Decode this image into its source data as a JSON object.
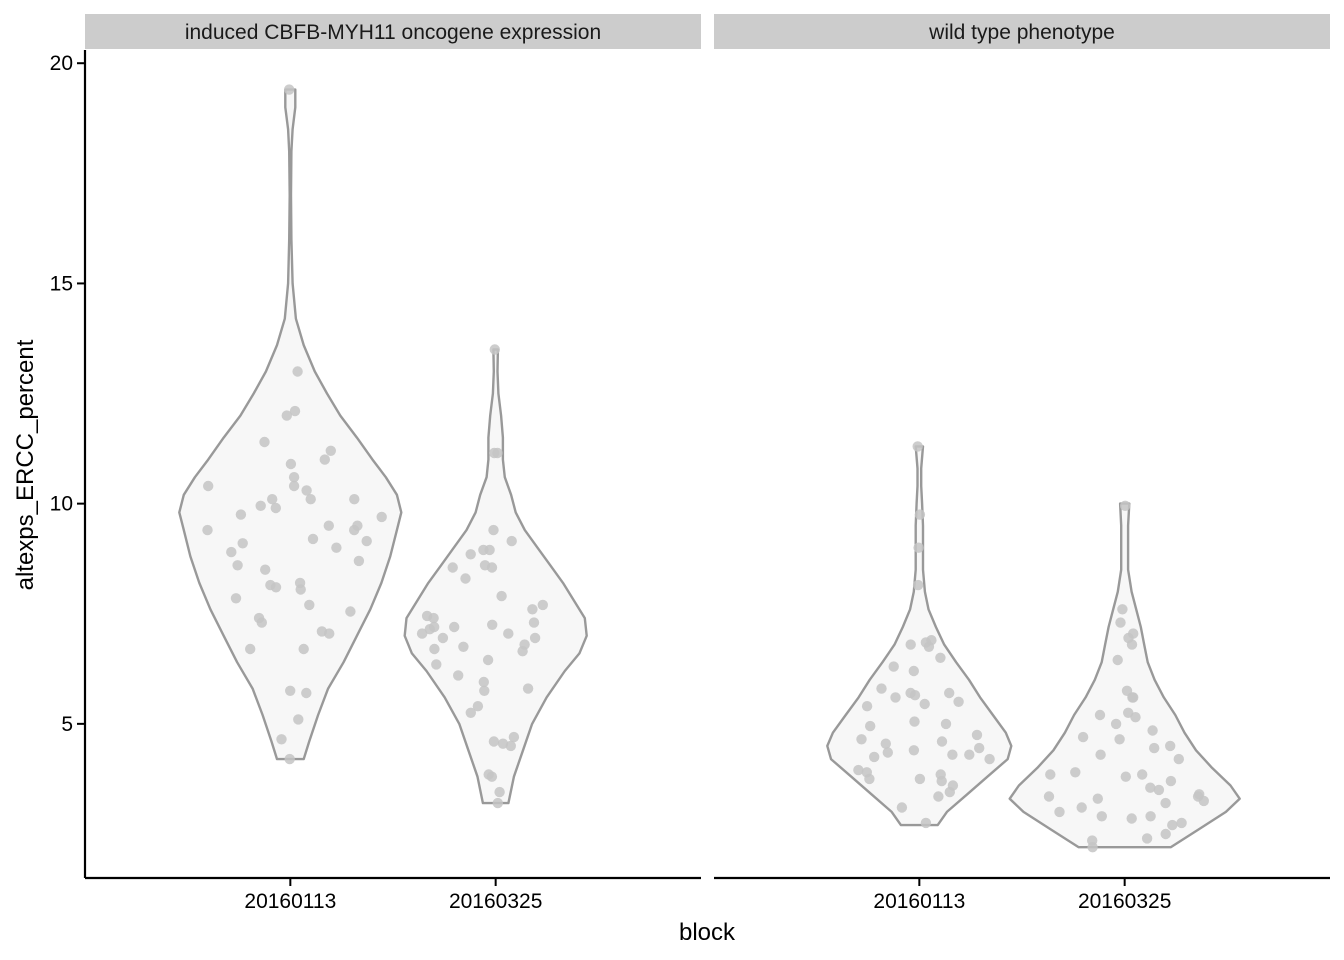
{
  "chart_data": {
    "type": "violin",
    "xlabel": "block",
    "ylabel": "altexps_ERCC_percent",
    "ylim": [
      1.5,
      20.3
    ],
    "yticks": [
      5,
      10,
      15,
      20
    ],
    "grid": false,
    "legend": "none",
    "colors": {
      "violin_fill": "#f7f7f7",
      "violin_stroke": "#999999",
      "points": "#c4c4c4",
      "strip": "#cccccc"
    },
    "panels": [
      {
        "title": "induced CBFB-MYH11 oncogene expression",
        "groups": [
          {
            "category": "20160113",
            "min": 4.2,
            "max": 19.4,
            "profile": [
              [
                4.2,
                0.12
              ],
              [
                4.6,
                0.17
              ],
              [
                5.2,
                0.25
              ],
              [
                5.8,
                0.34
              ],
              [
                6.4,
                0.48
              ],
              [
                7.0,
                0.6
              ],
              [
                7.6,
                0.72
              ],
              [
                8.2,
                0.82
              ],
              [
                8.8,
                0.9
              ],
              [
                9.4,
                0.96
              ],
              [
                9.8,
                1.0
              ],
              [
                10.2,
                0.96
              ],
              [
                10.6,
                0.86
              ],
              [
                11.0,
                0.74
              ],
              [
                11.5,
                0.6
              ],
              [
                12.0,
                0.45
              ],
              [
                12.5,
                0.33
              ],
              [
                13.0,
                0.22
              ],
              [
                13.6,
                0.12
              ],
              [
                14.2,
                0.05
              ],
              [
                15.0,
                0.02
              ],
              [
                16.0,
                0.01
              ],
              [
                17.0,
                0.006
              ],
              [
                18.0,
                0.01
              ],
              [
                18.5,
                0.02
              ],
              [
                19.0,
                0.045
              ],
              [
                19.4,
                0.045
              ]
            ],
            "points": [
              19.4,
              13.0,
              12.1,
              12.0,
              11.4,
              11.2,
              11.0,
              10.9,
              10.6,
              10.4,
              10.4,
              10.3,
              10.1,
              10.1,
              10.1,
              9.95,
              9.9,
              9.75,
              9.7,
              9.5,
              9.5,
              9.4,
              9.4,
              9.2,
              9.15,
              9.1,
              9.0,
              8.9,
              8.7,
              8.6,
              8.5,
              8.2,
              8.15,
              8.1,
              8.05,
              7.85,
              7.7,
              7.55,
              7.4,
              7.3,
              7.1,
              7.05,
              6.7,
              6.7,
              5.75,
              5.7,
              5.1,
              4.65,
              4.2
            ]
          },
          {
            "category": "20160325",
            "min": 3.2,
            "max": 13.5,
            "profile": [
              [
                3.2,
                0.14
              ],
              [
                3.8,
                0.2
              ],
              [
                4.4,
                0.3
              ],
              [
                5.0,
                0.4
              ],
              [
                5.6,
                0.56
              ],
              [
                6.2,
                0.76
              ],
              [
                6.6,
                0.92
              ],
              [
                7.0,
                1.0
              ],
              [
                7.4,
                0.98
              ],
              [
                7.8,
                0.86
              ],
              [
                8.2,
                0.74
              ],
              [
                8.6,
                0.6
              ],
              [
                9.0,
                0.46
              ],
              [
                9.4,
                0.32
              ],
              [
                9.8,
                0.22
              ],
              [
                10.2,
                0.17
              ],
              [
                10.6,
                0.1
              ],
              [
                11.0,
                0.08
              ],
              [
                11.5,
                0.08
              ],
              [
                12.0,
                0.06
              ],
              [
                12.5,
                0.03
              ],
              [
                13.0,
                0.02
              ],
              [
                13.5,
                0.025
              ]
            ],
            "points": [
              13.5,
              11.15,
              11.15,
              9.4,
              9.15,
              8.95,
              8.95,
              8.85,
              8.6,
              8.55,
              8.55,
              8.3,
              7.9,
              7.7,
              7.6,
              7.45,
              7.4,
              7.3,
              7.25,
              7.2,
              7.2,
              7.15,
              7.05,
              7.05,
              6.95,
              6.95,
              6.8,
              6.75,
              6.7,
              6.65,
              6.45,
              6.35,
              6.1,
              5.95,
              5.8,
              5.75,
              5.4,
              5.25,
              4.7,
              4.6,
              4.55,
              4.5,
              3.85,
              3.8,
              3.45,
              3.2
            ]
          }
        ]
      },
      {
        "title": "wild type phenotype",
        "groups": [
          {
            "category": "20160113",
            "min": 2.7,
            "max": 11.3,
            "profile": [
              [
                2.7,
                0.2
              ],
              [
                3.0,
                0.3
              ],
              [
                3.4,
                0.52
              ],
              [
                3.8,
                0.74
              ],
              [
                4.2,
                0.96
              ],
              [
                4.5,
                1.0
              ],
              [
                4.8,
                0.94
              ],
              [
                5.2,
                0.8
              ],
              [
                5.6,
                0.66
              ],
              [
                6.0,
                0.54
              ],
              [
                6.4,
                0.4
              ],
              [
                6.8,
                0.27
              ],
              [
                7.2,
                0.18
              ],
              [
                7.6,
                0.1
              ],
              [
                8.0,
                0.06
              ],
              [
                8.5,
                0.04
              ],
              [
                9.0,
                0.04
              ],
              [
                9.5,
                0.04
              ],
              [
                10.0,
                0.03
              ],
              [
                10.4,
                0.02
              ],
              [
                10.8,
                0.02
              ],
              [
                11.3,
                0.04
              ]
            ],
            "points": [
              11.3,
              9.75,
              9.0,
              8.15,
              6.9,
              6.85,
              6.8,
              6.75,
              6.5,
              6.3,
              6.2,
              5.8,
              5.7,
              5.7,
              5.65,
              5.6,
              5.5,
              5.45,
              5.4,
              5.05,
              5.0,
              4.95,
              4.75,
              4.65,
              4.6,
              4.55,
              4.45,
              4.4,
              4.35,
              4.3,
              4.3,
              4.25,
              4.2,
              3.95,
              3.9,
              3.85,
              3.75,
              3.75,
              3.7,
              3.6,
              3.45,
              3.35,
              3.1,
              2.75
            ]
          },
          {
            "category": "20160325",
            "min": 2.2,
            "max": 10.0,
            "profile": [
              [
                2.2,
                0.4
              ],
              [
                2.6,
                0.64
              ],
              [
                3.0,
                0.88
              ],
              [
                3.3,
                1.0
              ],
              [
                3.6,
                0.92
              ],
              [
                4.0,
                0.76
              ],
              [
                4.4,
                0.62
              ],
              [
                4.8,
                0.52
              ],
              [
                5.2,
                0.44
              ],
              [
                5.6,
                0.34
              ],
              [
                6.0,
                0.26
              ],
              [
                6.4,
                0.2
              ],
              [
                6.8,
                0.17
              ],
              [
                7.2,
                0.14
              ],
              [
                7.6,
                0.1
              ],
              [
                8.0,
                0.06
              ],
              [
                8.5,
                0.03
              ],
              [
                9.0,
                0.03
              ],
              [
                9.5,
                0.03
              ],
              [
                10.0,
                0.04
              ]
            ],
            "points": [
              9.95,
              7.6,
              7.3,
              7.05,
              6.95,
              6.8,
              6.45,
              5.75,
              5.6,
              5.6,
              5.25,
              5.2,
              5.15,
              5.0,
              4.85,
              4.7,
              4.65,
              4.5,
              4.45,
              4.3,
              4.2,
              3.9,
              3.85,
              3.85,
              3.8,
              3.7,
              3.55,
              3.5,
              3.4,
              3.35,
              3.35,
              3.3,
              3.25,
              3.2,
              3.1,
              3.0,
              2.9,
              2.9,
              2.85,
              2.75,
              2.7,
              2.5,
              2.4,
              2.35,
              2.2
            ]
          }
        ]
      }
    ]
  }
}
